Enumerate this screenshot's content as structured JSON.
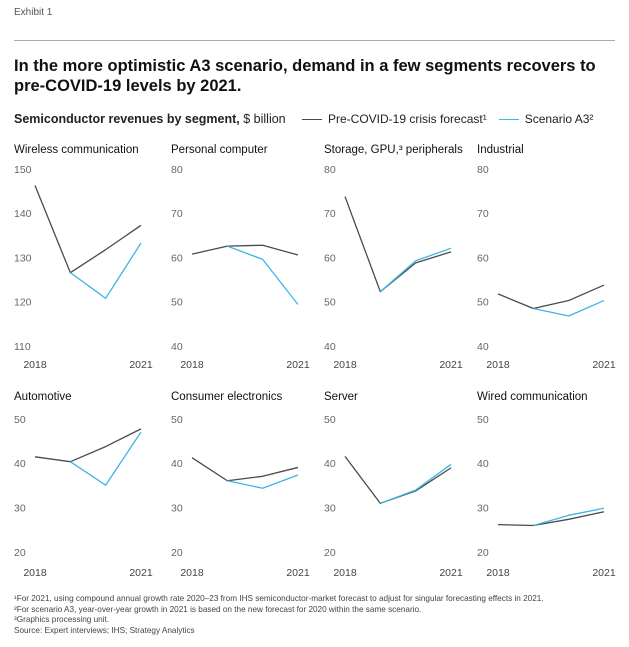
{
  "exhibit": "Exhibit 1",
  "title": "In the more optimistic A3 scenario, demand in a few segments recovers to pre-COVID-19 levels by 2021.",
  "subtitle": "Semiconductor revenues by segment,",
  "subtitle_unit": "$ billion",
  "footnotes": [
    "¹For 2021, using compound annual growth rate 2020–23 from IHS semiconductor-market forecast to adjust for singular forecasting effects in 2021.",
    "²For scenario A3, year-over-year growth in 2021 is based on the new forecast for 2020 within the same scenario.",
    "³Graphics processing unit.",
    "Source: Expert interviews; IHS; Strategy Analytics"
  ],
  "chart_data": [
    {
      "type": "line",
      "title": "Wireless communication",
      "categories": [
        "2018",
        null,
        null,
        "2021"
      ],
      "ylim": [
        110,
        150
      ],
      "yticks": [
        110,
        120,
        130,
        140,
        150
      ],
      "series": [
        {
          "name": "Pre-COVID-19 crisis forecast¹",
          "color": "#4a4a4a",
          "values": [
            146.5,
            126.8,
            132,
            137.5
          ]
        },
        {
          "name": "Scenario A3²",
          "color": "#3fb5e5",
          "values": [
            null,
            126.8,
            121,
            133.5
          ]
        }
      ]
    },
    {
      "type": "line",
      "title": "Personal computer",
      "categories": [
        "2018",
        null,
        null,
        "2021"
      ],
      "ylim": [
        40,
        80
      ],
      "yticks": [
        40,
        50,
        60,
        70,
        80
      ],
      "series": [
        {
          "name": "Pre-COVID-19 crisis forecast¹",
          "color": "#4a4a4a",
          "values": [
            61,
            62.8,
            63,
            60.8
          ]
        },
        {
          "name": "Scenario A3²",
          "color": "#3fb5e5",
          "values": [
            null,
            62.8,
            59.8,
            49.6
          ]
        }
      ]
    },
    {
      "type": "line",
      "title": "Storage, GPU,³ peripherals",
      "categories": [
        "2018",
        null,
        null,
        "2021"
      ],
      "ylim": [
        40,
        80
      ],
      "yticks": [
        40,
        50,
        60,
        70,
        80
      ],
      "series": [
        {
          "name": "Pre-COVID-19 crisis forecast¹",
          "color": "#4a4a4a",
          "values": [
            74,
            52.5,
            59,
            61.5
          ]
        },
        {
          "name": "Scenario A3²",
          "color": "#3fb5e5",
          "values": [
            null,
            52.5,
            59.5,
            62.3
          ]
        }
      ]
    },
    {
      "type": "line",
      "title": "Industrial",
      "categories": [
        "2018",
        null,
        null,
        "2021"
      ],
      "ylim": [
        40,
        80
      ],
      "yticks": [
        40,
        50,
        60,
        70,
        80
      ],
      "series": [
        {
          "name": "Pre-COVID-19 crisis forecast¹",
          "color": "#4a4a4a",
          "values": [
            52,
            48.7,
            50.5,
            54
          ]
        },
        {
          "name": "Scenario A3²",
          "color": "#3fb5e5",
          "values": [
            null,
            48.7,
            47,
            50.5
          ]
        }
      ]
    },
    {
      "type": "line",
      "title": "Automotive",
      "categories": [
        "2018",
        null,
        null,
        "2021"
      ],
      "ylim": [
        20,
        50
      ],
      "yticks": [
        20,
        30,
        40,
        50
      ],
      "series": [
        {
          "name": "Pre-COVID-19 crisis forecast¹",
          "color": "#4a4a4a",
          "values": [
            41.7,
            40.6,
            44,
            48
          ]
        },
        {
          "name": "Scenario A3²",
          "color": "#3fb5e5",
          "values": [
            null,
            40.6,
            35.3,
            47.3
          ]
        }
      ]
    },
    {
      "type": "line",
      "title": "Consumer electronics",
      "categories": [
        "2018",
        null,
        null,
        "2021"
      ],
      "ylim": [
        20,
        50
      ],
      "yticks": [
        20,
        30,
        40,
        50
      ],
      "series": [
        {
          "name": "Pre-COVID-19 crisis forecast¹",
          "color": "#4a4a4a",
          "values": [
            41.5,
            36.3,
            37.3,
            39.3
          ]
        },
        {
          "name": "Scenario A3²",
          "color": "#3fb5e5",
          "values": [
            null,
            36.3,
            34.6,
            37.6
          ]
        }
      ]
    },
    {
      "type": "line",
      "title": "Server",
      "categories": [
        "2018",
        null,
        null,
        "2021"
      ],
      "ylim": [
        20,
        50
      ],
      "yticks": [
        20,
        30,
        40,
        50
      ],
      "series": [
        {
          "name": "Pre-COVID-19 crisis forecast¹",
          "color": "#4a4a4a",
          "values": [
            41.8,
            31.2,
            34,
            39.2
          ]
        },
        {
          "name": "Scenario A3²",
          "color": "#3fb5e5",
          "values": [
            null,
            31.2,
            34.2,
            40
          ]
        }
      ]
    },
    {
      "type": "line",
      "title": "Wired communication",
      "categories": [
        "2018",
        null,
        null,
        "2021"
      ],
      "ylim": [
        20,
        50
      ],
      "yticks": [
        20,
        30,
        40,
        50
      ],
      "series": [
        {
          "name": "Pre-COVID-19 crisis forecast¹",
          "color": "#4a4a4a",
          "values": [
            26.4,
            26.2,
            27.6,
            29.3
          ]
        },
        {
          "name": "Scenario A3²",
          "color": "#3fb5e5",
          "values": [
            null,
            26.2,
            28.5,
            30.1
          ]
        }
      ]
    }
  ]
}
